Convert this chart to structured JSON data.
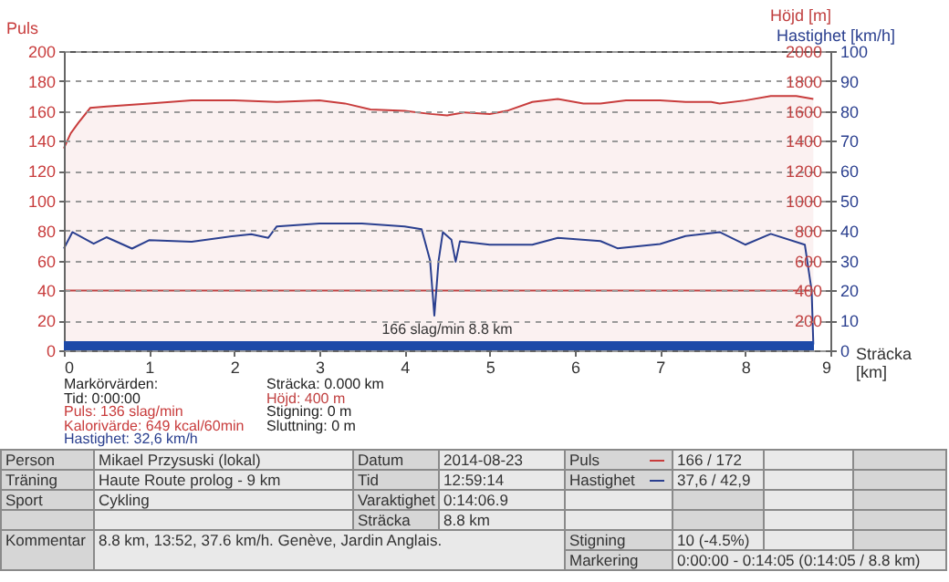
{
  "chart_data": [
    {
      "type": "line",
      "ylabel": "Puls",
      "y2label": "Höjd [m]",
      "y3label": "Hastighet [km/h]",
      "xlabel": "Sträcka [km]",
      "xlim": [
        0,
        9
      ],
      "xticks": [
        0,
        1,
        2,
        3,
        4,
        5,
        6,
        7,
        8,
        9
      ],
      "ylim": [
        0,
        200
      ],
      "yticks": [
        0,
        20,
        40,
        60,
        80,
        100,
        120,
        140,
        160,
        180,
        200
      ],
      "y2lim": [
        0,
        2000
      ],
      "y2ticks": [
        {
          "value": 0,
          "label": null
        },
        200,
        400,
        600,
        800,
        1000,
        1200,
        1400,
        1600,
        1800,
        2000
      ],
      "y3lim": [
        0,
        100
      ],
      "y3ticks": [
        0,
        10,
        20,
        30,
        40,
        50,
        60,
        70,
        80,
        90,
        100
      ],
      "grid": "y",
      "series": [
        {
          "type": "area",
          "color": "#c83c3c",
          "x": [
            0,
            0.08,
            0.17,
            0.31,
            0.5,
            1,
            1.5,
            2,
            2.5,
            3,
            3.3,
            3.6,
            4,
            4.3,
            4.5,
            4.7,
            5,
            5.2,
            5.5,
            5.8,
            6.1,
            6.3,
            6.6,
            7,
            7.3,
            7.6,
            7.7,
            8,
            8.3,
            8.6,
            8.8
          ],
          "values": [
            135,
            145,
            152,
            162,
            163,
            165,
            167,
            167,
            166,
            167,
            165,
            161,
            160,
            158,
            157,
            159,
            158,
            160,
            166,
            168,
            165,
            165,
            167,
            167,
            166,
            166,
            165,
            167,
            170,
            170,
            168
          ]
        },
        {
          "axis": "y2",
          "color": "#c04040",
          "x": [
            0,
            8.8
          ],
          "values": [
            400,
            400
          ]
        },
        {
          "axis": "y3",
          "color": "#2a3f8f",
          "x": [
            0,
            0.1,
            0.35,
            0.5,
            0.8,
            1,
            1.5,
            2,
            2.2,
            2.4,
            2.5,
            3,
            3.5,
            4,
            4.2,
            4.3,
            4.35,
            4.4,
            4.45,
            4.55,
            4.6,
            4.65,
            5,
            5.5,
            5.8,
            6.3,
            6.5,
            7,
            7.3,
            7.7,
            8,
            8.3,
            8.7,
            8.78,
            8.8
          ],
          "values": [
            34,
            39.5,
            35.6,
            37.8,
            34,
            36.8,
            36.3,
            38.2,
            38.8,
            37.6,
            41.4,
            42.4,
            42.4,
            41.4,
            40.5,
            30,
            11.6,
            30,
            39.5,
            37,
            29.6,
            36.4,
            35.3,
            35.3,
            37.6,
            36.5,
            34.1,
            35.5,
            38.2,
            39.5,
            35.3,
            38.9,
            35.3,
            20,
            2
          ]
        }
      ],
      "annotations": [
        "166 slag/min 8.8 km",
        "Markörvärden:",
        "Tid: 0:00:00",
        "Puls: 136 slag/min",
        "Kalorivärde: 649 kcal/60min",
        "Hastighet: 32,6 km/h",
        "Sträcka: 0.000 km",
        "Höjd: 400 m",
        "Stigning: 0 m",
        "Sluttning: 0 m"
      ]
    },
    {
      "type": "other",
      "annotations": [
        "Person",
        "Mikael Przysuski (lokal)",
        "Datum",
        "2014-08-23",
        "Puls",
        "166 / 172",
        "Träning",
        "Haute Route prolog - 9 km",
        "Tid",
        "12:59:14",
        "Hastighet",
        "37,6 / 42,9",
        "Sport",
        "Cykling",
        "Varaktighet",
        "0:14:06.9",
        "Sträcka",
        "8.8 km",
        "Kommentar",
        "8.8 km, 13:52, 37.6 km/h. Genève, Jardin Anglais.",
        "Stigning",
        "10 (-4.5%)",
        "Markering",
        "0:00:00 - 0:14:05 (0:14:05 / 8.8 km)"
      ]
    }
  ]
}
